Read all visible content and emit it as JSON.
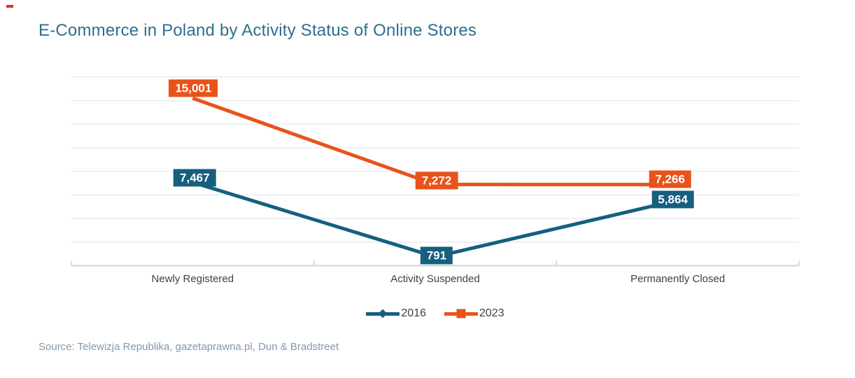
{
  "title": "E-Commerce in Poland by Activity Status of Online Stores",
  "source": "Source: Telewizja Republika, gazetaprawna.pl, Dun & Bradstreet",
  "colors": {
    "title_text": "#2D6F91",
    "series_2016": "#165F7E",
    "series_2023": "#E8531A",
    "accent_mark": "#E0301E",
    "grid_line": "#E7EDF0",
    "axis_line": "#CBD4D9",
    "category_text": "#3F3F3F",
    "legend_text": "#3F3F3F",
    "source_text": "#8298AE",
    "data_label_text": "#FFFFFF"
  },
  "chart_data": {
    "type": "line",
    "title": "E-Commerce in Poland by Activity Status of Online Stores",
    "categories": [
      "Newly Registered",
      "Activity Suspended",
      "Permanently Closed"
    ],
    "series": [
      {
        "name": "2016",
        "color": "#165F7E",
        "marker": "diamond",
        "values": [
          7467,
          791,
          5864
        ],
        "value_labels": [
          "7,467",
          "791",
          "5,864"
        ]
      },
      {
        "name": "2023",
        "color": "#E8531A",
        "marker": "square",
        "values": [
          15001,
          7272,
          7266
        ],
        "value_labels": [
          "15,001",
          "7,272",
          "7,266"
        ]
      }
    ],
    "xlabel": "",
    "ylabel": "",
    "ylim": [
      0,
      16900
    ],
    "gridline_count": 8,
    "grid": "horizontal-only",
    "y_axis_labels_visible": false,
    "data_labels": "boxed-on-points",
    "legend_position": "bottom-center"
  },
  "legend": {
    "items": [
      {
        "label": "2016",
        "color": "#165F7E",
        "marker": "diamond"
      },
      {
        "label": "2023",
        "color": "#E8531A",
        "marker": "square"
      }
    ]
  }
}
